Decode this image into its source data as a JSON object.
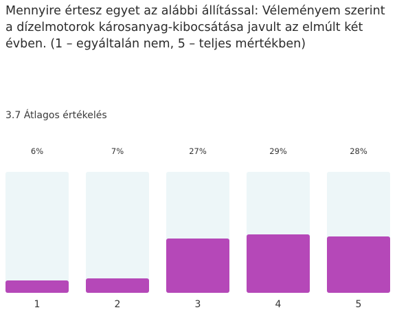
{
  "question": {
    "text": "Mennyire értesz egyet az alábbi állítással: Véleményem szerint a dízelmotorok károsanyag-kibocsátása javult az elmúlt két évben. (1 – egyáltalán nem, 5 – teljes mértékben)"
  },
  "summary": {
    "average": "3.7",
    "average_label": "Átlagos értékelés"
  },
  "colors": {
    "bar_fill": "#b548b8",
    "bar_track": "#edf6f8"
  },
  "chart_data": {
    "type": "bar",
    "title": "",
    "xlabel": "",
    "ylabel": "",
    "categories": [
      "1",
      "2",
      "3",
      "4",
      "5"
    ],
    "values": [
      6,
      7,
      27,
      29,
      28
    ],
    "value_labels": [
      "6%",
      "7%",
      "27%",
      "29%",
      "28%"
    ],
    "unit": "%",
    "ylim": [
      0,
      100
    ],
    "grid": false,
    "legend": "none"
  }
}
